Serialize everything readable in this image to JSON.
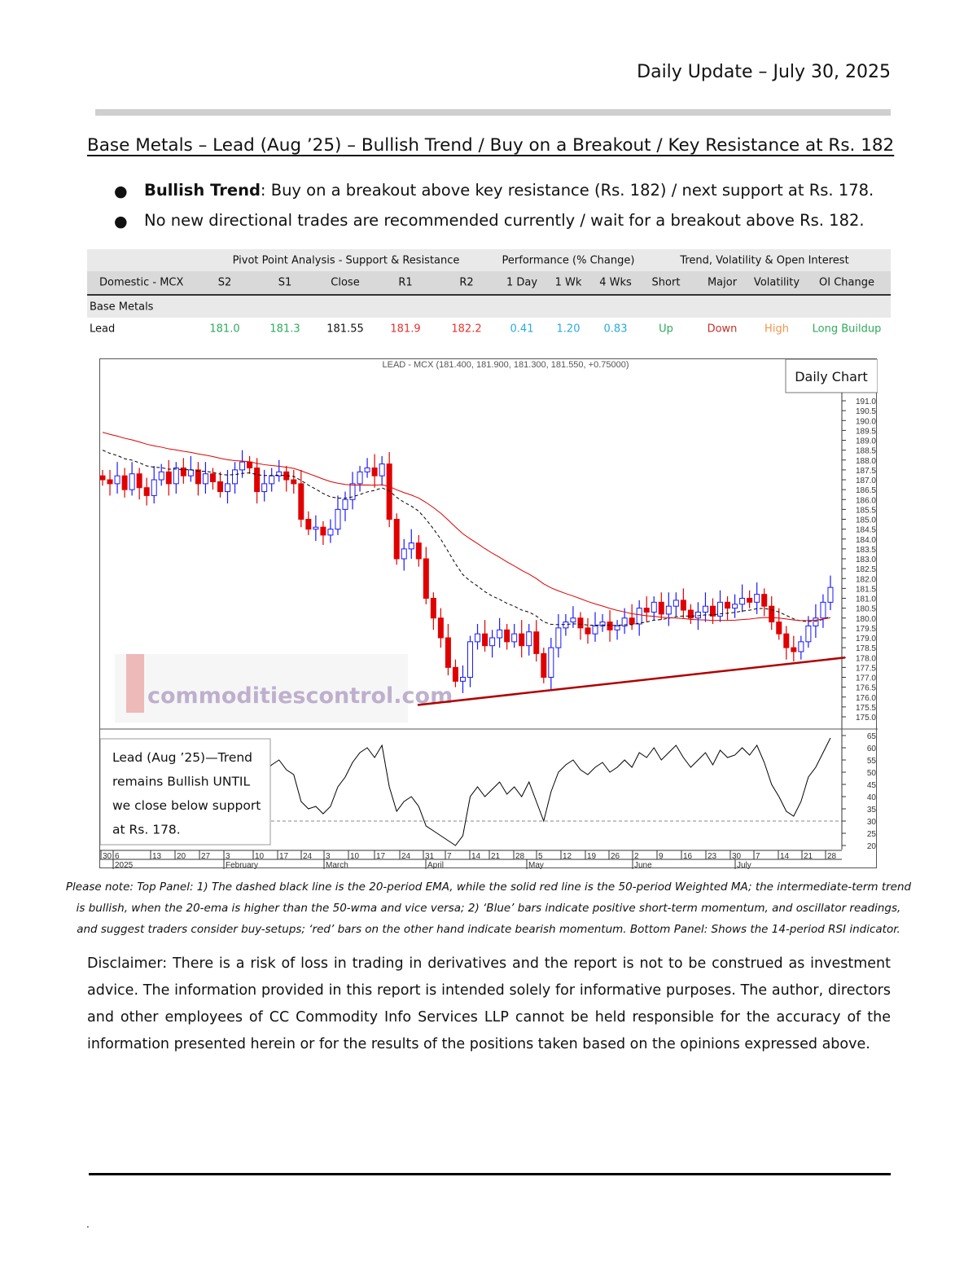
{
  "header": {
    "title": "Daily Update – July 30, 2025"
  },
  "heading": "Base Metals – Lead (Aug   ’25) – Bullish Trend / Buy on a Breakout / Key Resistance at Rs. 182",
  "bullets": [
    {
      "bold": "Bullish Trend",
      "text": ": Buy on a breakout above key resistance (Rs. 182) / next support at Rs. 178."
    },
    {
      "bold": "",
      "text": "No new directional trades are recommended currently / wait for a breakout above Rs. 182."
    }
  ],
  "table": {
    "groups": [
      "Pivot Point Analysis - Support & Resistance",
      "Performance (% Change)",
      "Trend, Volatility & Open Interest"
    ],
    "headers": [
      "Domestic - MCX",
      "S2",
      "S1",
      "Close",
      "R1",
      "R2",
      "1 Day",
      "1 Wk",
      "4 Wks",
      "Short",
      "Major",
      "Volatility",
      "OI Change"
    ],
    "section": "Base Metals",
    "row": [
      "Lead",
      "181.0",
      "181.3",
      "181.55",
      "181.9",
      "182.2",
      "0.41",
      "1.20",
      "0.83",
      "Up",
      "Down",
      "High",
      "Long Buildup"
    ],
    "colors": [
      "#111111",
      "#2eaa5c",
      "#2eaa5c",
      "#111111",
      "#e8302e",
      "#e8302e",
      "#2aa9e0",
      "#2aa9e0",
      "#2aa9e0",
      "#2eaa5c",
      "#c0302a",
      "#f0964a",
      "#2eaa5c"
    ]
  },
  "chart_data": {
    "type": "candlestick",
    "title": "LEAD - MCX (181.400, 181.900, 181.300, 181.550, +0.75000)",
    "badge": "Daily Chart",
    "ylim": [
      175.0,
      191.0
    ],
    "y_ticks": [
      "175.0",
      "175.5",
      "176.0",
      "176.5",
      "177.0",
      "177.5",
      "178.0",
      "178.5",
      "179.0",
      "179.5",
      "180.0",
      "180.5",
      "181.0",
      "181.5",
      "182.0",
      "182.5",
      "183.0",
      "183.5",
      "184.0",
      "184.5",
      "185.0",
      "185.5",
      "186.0",
      "186.5",
      "187.0",
      "187.5",
      "188.0",
      "188.5",
      "189.0",
      "189.5",
      "190.0",
      "190.5",
      "191.0"
    ],
    "closes": [
      187.0,
      186.8,
      187.2,
      186.5,
      187.3,
      186.6,
      186.2,
      187.0,
      187.4,
      186.8,
      187.6,
      187.2,
      187.5,
      186.8,
      187.3,
      186.9,
      186.4,
      186.8,
      187.5,
      187.9,
      187.6,
      186.4,
      186.8,
      187.2,
      187.4,
      187.0,
      186.8,
      185.0,
      184.5,
      184.6,
      184.2,
      184.5,
      185.5,
      186.0,
      186.8,
      187.4,
      187.6,
      187.2,
      187.8,
      185.0,
      183.0,
      183.5,
      183.8,
      183.0,
      181.0,
      180.0,
      179.0,
      177.5,
      176.8,
      177.0,
      178.8,
      179.2,
      178.6,
      179.0,
      179.4,
      178.8,
      179.2,
      178.6,
      179.3,
      178.2,
      177.0,
      178.5,
      179.5,
      179.8,
      180.0,
      179.5,
      179.2,
      179.6,
      179.8,
      179.4,
      179.6,
      180.0,
      179.7,
      180.5,
      180.3,
      180.8,
      180.2,
      180.6,
      180.9,
      180.4,
      180.0,
      180.3,
      180.6,
      180.1,
      180.8,
      180.5,
      180.7,
      181.0,
      180.8,
      181.2,
      180.6,
      179.8,
      179.2,
      178.5,
      178.3,
      178.8,
      179.6,
      180.0,
      180.8,
      181.55
    ],
    "up_color": "#1a1aff",
    "down_color": "#e00000",
    "ema_period": 20,
    "wma_period": 50,
    "ema_color": "#000000",
    "wma_color": "#e00000",
    "trendline": {
      "from": 175.6,
      "to": 178.0,
      "color": "#b00000"
    },
    "rsi": {
      "period": 14,
      "ylim": [
        20,
        65
      ],
      "ticks": [
        "20",
        "25",
        "30",
        "35",
        "40",
        "45",
        "50",
        "55",
        "60",
        "65"
      ],
      "level": 30,
      "values": [
        48,
        45,
        50,
        44,
        52,
        46,
        42,
        49,
        53,
        47,
        55,
        51,
        54,
        46,
        52,
        48,
        44,
        50,
        56,
        60,
        57,
        46,
        50,
        53,
        55,
        51,
        49,
        38,
        35,
        36,
        33,
        36,
        44,
        48,
        54,
        58,
        60,
        56,
        61,
        44,
        34,
        38,
        40,
        36,
        28,
        26,
        24,
        22,
        20,
        24,
        40,
        44,
        40,
        43,
        46,
        41,
        44,
        40,
        46,
        38,
        30,
        42,
        50,
        53,
        55,
        51,
        49,
        52,
        54,
        50,
        52,
        55,
        52,
        58,
        56,
        60,
        55,
        58,
        61,
        56,
        52,
        55,
        58,
        53,
        59,
        56,
        57,
        60,
        57,
        61,
        54,
        45,
        40,
        34,
        32,
        38,
        48,
        52,
        58,
        64
      ]
    },
    "x_day_ticks": [
      "30",
      "6",
      "13",
      "20",
      "27",
      "3",
      "10",
      "17",
      "24",
      "3",
      "10",
      "17",
      "24",
      "31",
      "7",
      "14",
      "21",
      "28",
      "5",
      "12",
      "19",
      "26",
      "2",
      "9",
      "16",
      "23",
      "30",
      "7",
      "14",
      "21",
      "28"
    ],
    "x_month_labels": [
      "2025",
      "February",
      "March",
      "April",
      "May",
      "June",
      "July"
    ],
    "rsi_note": [
      "Lead (Aug   ’25)—Trend",
      "remains Bullish UNTIL",
      "we close below support",
      "at Rs. 178."
    ],
    "watermark": "commoditiescontrol.com"
  },
  "note": [
    "Please note: Top Panel: 1) The dashed black line is the 20-period EMA, while the solid red line is the 50-period Weighted MA; the intermediate-term trend",
    "is bullish, when the 20-ema is higher than the 50-wma and vice versa; 2)   ‘Blue’   bars indicate positive short-term momentum, and oscillator readings,",
    "and suggest traders consider buy-setups;   ‘red’   bars on the other hand indicate bearish momentum. Bottom Panel: Shows the 14-period RSI indicator."
  ],
  "disclaimer": "Disclaimer: There is a risk of loss in trading in derivatives and the report is not to be construed as investment advice. The information provided in this report is intended solely for informative purposes. The author, directors and other employees of CC Commodity Info Services LLP cannot be held responsible for the accuracy of the information presented herein or for the results of the positions taken based on the opinions expressed above.",
  "footer_mark": "."
}
